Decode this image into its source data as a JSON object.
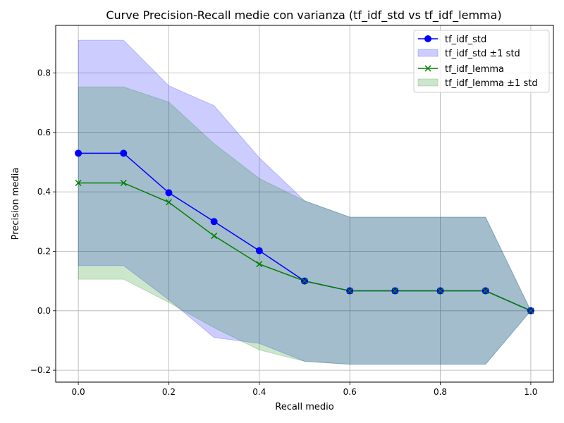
{
  "chart_data": {
    "type": "line",
    "title": "Curve Precision-Recall medie con varianza (tf_idf_std vs tf_idf_lemma)",
    "xlabel": "Recall medio",
    "ylabel": "Precision media",
    "xlim": [
      -0.05,
      1.05
    ],
    "ylim": [
      -0.24,
      0.96
    ],
    "xticks": [
      0.0,
      0.2,
      0.4,
      0.6,
      0.8,
      1.0
    ],
    "xtick_labels": [
      "0.0",
      "0.2",
      "0.4",
      "0.6",
      "0.8",
      "1.0"
    ],
    "yticks": [
      -0.2,
      0.0,
      0.2,
      0.4,
      0.6,
      0.8
    ],
    "ytick_labels": [
      "−0.2",
      "0.0",
      "0.2",
      "0.4",
      "0.6",
      "0.8"
    ],
    "grid": true,
    "legend_position": "top-right",
    "x": [
      0.0,
      0.1,
      0.2,
      0.3,
      0.4,
      0.5,
      0.6,
      0.7,
      0.8,
      0.9,
      1.0
    ],
    "series": [
      {
        "name": "tf_idf_std",
        "color": "#0000ff",
        "marker": "circle",
        "values": [
          0.53,
          0.53,
          0.397,
          0.3,
          0.202,
          0.1,
          0.067,
          0.067,
          0.067,
          0.067,
          0.0
        ],
        "band_upper": [
          0.91,
          0.91,
          0.757,
          0.69,
          0.515,
          0.37,
          0.315,
          0.315,
          0.315,
          0.315,
          0.0
        ],
        "band_lower": [
          0.152,
          0.152,
          0.037,
          -0.09,
          -0.11,
          -0.17,
          -0.18,
          -0.18,
          -0.18,
          -0.18,
          0.0
        ],
        "band_name": "tf_idf_std ±1 std",
        "band_color": "#0000ff"
      },
      {
        "name": "tf_idf_lemma",
        "color": "#008000",
        "marker": "x",
        "values": [
          0.43,
          0.43,
          0.365,
          0.252,
          0.157,
          0.1,
          0.067,
          0.067,
          0.067,
          0.067,
          0.0
        ],
        "band_upper": [
          0.753,
          0.753,
          0.702,
          0.562,
          0.445,
          0.37,
          0.315,
          0.315,
          0.315,
          0.315,
          0.0
        ],
        "band_lower": [
          0.106,
          0.106,
          0.028,
          -0.057,
          -0.132,
          -0.17,
          -0.18,
          -0.18,
          -0.18,
          -0.18,
          0.0
        ],
        "band_name": "tf_idf_lemma ±1 std",
        "band_color": "#008000"
      }
    ]
  }
}
